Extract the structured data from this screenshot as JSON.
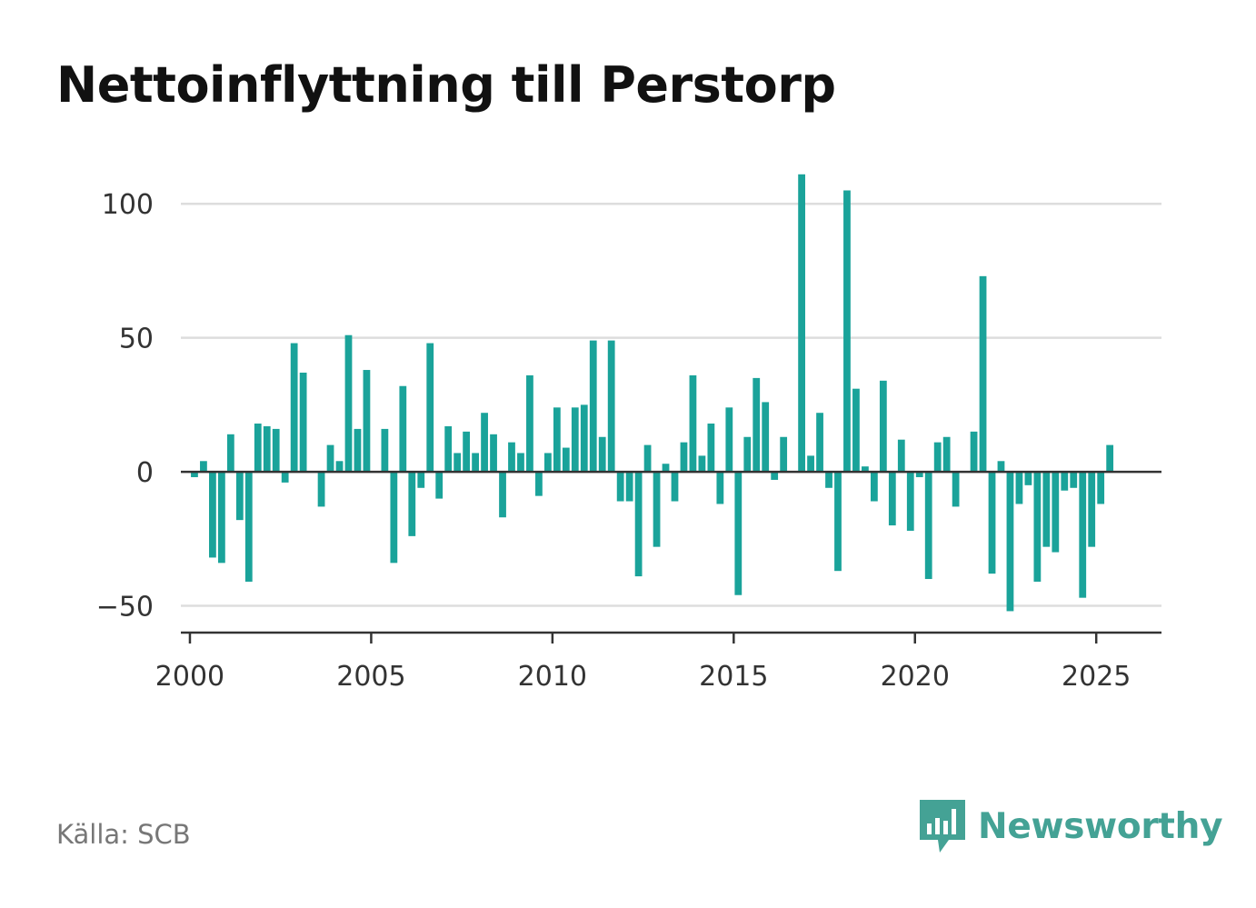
{
  "title": "Nettoinflyttning till Perstorp",
  "source": "Källa: SCB",
  "brand": {
    "name": "Newsworthy",
    "color": "#44a295",
    "icon": "bar-chart-speech-bubble-icon"
  },
  "colors": {
    "bar": "#1aa39a",
    "grid": "#dddddd",
    "axis": "#333333"
  },
  "chart_data": {
    "type": "bar",
    "title": "Nettoinflyttning till Perstorp",
    "xlabel": "",
    "ylabel": "",
    "frequency": "quarterly",
    "start_period": "2000 Q1",
    "xlim": [
      1999.75,
      2026.8
    ],
    "ylim": [
      -60,
      115
    ],
    "yticks": [
      -50,
      0,
      50,
      100
    ],
    "ytick_labels": [
      "−50",
      "0",
      "50",
      "100"
    ],
    "xticks": [
      2000,
      2005,
      2010,
      2015,
      2020,
      2025
    ],
    "xtick_labels": [
      "2000",
      "2005",
      "2010",
      "2015",
      "2020",
      "2025"
    ],
    "grid": true,
    "legend": "none",
    "series": [
      {
        "values": [
          -2,
          4,
          -32,
          -34,
          14,
          -18,
          -41,
          18,
          17,
          16,
          -4,
          48,
          37,
          0,
          -13,
          10,
          4,
          51,
          16,
          38,
          0,
          16,
          -34,
          32,
          -24,
          -6,
          48,
          -10,
          17,
          7,
          15,
          7,
          22,
          14,
          -17,
          11,
          7,
          36,
          -9,
          7,
          24,
          9,
          24,
          25,
          49,
          13,
          49,
          -11,
          -11,
          -39,
          10,
          -28,
          3,
          -11,
          11,
          36,
          6,
          18,
          -12,
          24,
          -46,
          13,
          35,
          26,
          -3,
          13,
          0,
          111,
          6,
          22,
          -6,
          -37,
          105,
          31,
          2,
          -11,
          34,
          -20,
          12,
          -22,
          -2,
          -40,
          11,
          13,
          -13,
          0,
          15,
          73,
          -38,
          4,
          -52,
          -12,
          -5,
          -41,
          -28,
          -30,
          -7,
          -6,
          -47,
          -28,
          -12,
          10
        ]
      }
    ]
  }
}
